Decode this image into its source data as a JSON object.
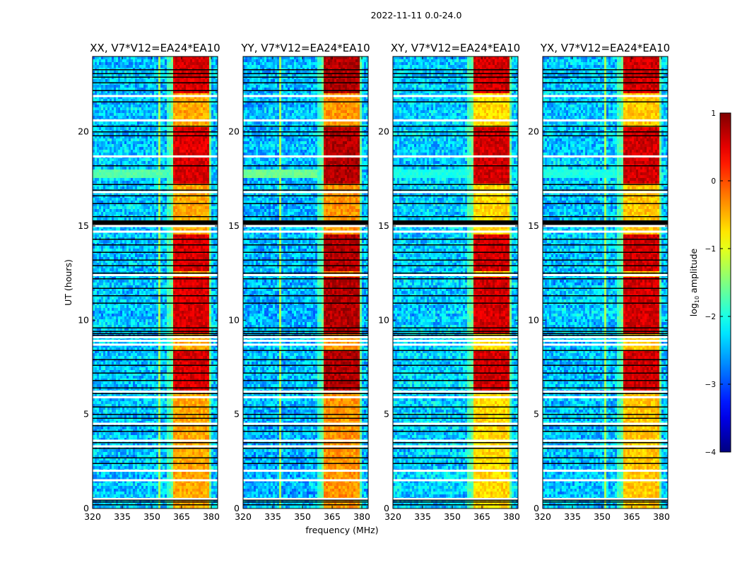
{
  "chart_data": {
    "type": "heatmap",
    "suptitle": "2022-11-11 0.0-24.0",
    "xlabel": "frequency (MHz)",
    "ylabel": "UT (hours)",
    "xlim": [
      320,
      383.2
    ],
    "ylim": [
      0,
      24
    ],
    "xticks": [
      320,
      335,
      350,
      365,
      380
    ],
    "yticks": [
      0,
      5,
      10,
      15,
      20
    ],
    "colormap": "jet",
    "colorbar": {
      "label_prefix": "log",
      "label_sub": "10",
      "label_suffix": " amplitude",
      "range": [
        -4,
        1
      ],
      "ticks": [
        1,
        0,
        -1,
        -2,
        -3,
        -4
      ],
      "tick_labels": [
        "1",
        "0",
        "−1",
        "−2",
        "−3",
        "−4"
      ]
    },
    "panels": [
      {
        "title": "XX, V7*V12=EA24*EA10",
        "pol": "XX",
        "band_peak": 0.55,
        "band_mid": -0.45,
        "bg": -2.4,
        "rfi_column": 354,
        "left_band_level": -1.7
      },
      {
        "title": "YY, V7*V12=EA24*EA10",
        "pol": "YY",
        "band_peak": 0.75,
        "band_mid": -0.35,
        "bg": -2.45,
        "rfi_column": 339,
        "left_band_level": -1.6
      },
      {
        "title": "XY, V7*V12=EA24*EA10",
        "pol": "XY",
        "band_peak": 0.6,
        "band_mid": -0.7,
        "bg": -2.35,
        "rfi_column": null,
        "left_band_level": -2.0
      },
      {
        "title": "YX, V7*V12=EA24*EA10",
        "pol": "YX",
        "band_peak": 0.6,
        "band_mid": -0.6,
        "bg": -2.4,
        "rfi_column": 352,
        "left_band_level": -2.0
      }
    ],
    "bright_subbands_mhz": [
      [
        360.5,
        365.0
      ],
      [
        365.2,
        369.6
      ],
      [
        369.8,
        374.4
      ],
      [
        374.6,
        379.2
      ]
    ],
    "bright_time_ranges_hours": [
      [
        22.1,
        24.0
      ],
      [
        17.2,
        20.2
      ],
      [
        12.6,
        14.5
      ],
      [
        9.3,
        12.3
      ],
      [
        6.2,
        8.4
      ]
    ],
    "flagged_white_hours": [
      21.9,
      20.6,
      18.7,
      16.8,
      15.0,
      14.7,
      12.4,
      9.1,
      8.9,
      8.7,
      6.2,
      5.9,
      4.5,
      3.6,
      3.3,
      2.0,
      1.5,
      0.5
    ],
    "flagged_black_hours": [
      23.3,
      23.1,
      22.9,
      22.6,
      22.2,
      21.6,
      20.3,
      20.0,
      19.8,
      18.2,
      17.2,
      16.9,
      16.6,
      16.2,
      15.5,
      15.1,
      14.3,
      14.0,
      13.6,
      13.2,
      12.9,
      12.5,
      12.2,
      11.7,
      11.3,
      10.9,
      9.6,
      9.4,
      9.3,
      9.2,
      8.4,
      7.9,
      7.6,
      7.2,
      6.8,
      6.4,
      6.1,
      5.4,
      5.0,
      4.8,
      4.4,
      4.1,
      3.5,
      3.2,
      2.7,
      2.4,
      0.45,
      0.35,
      0.2
    ],
    "flagged_block_hours": [
      [
        15.05,
        15.3
      ]
    ]
  }
}
